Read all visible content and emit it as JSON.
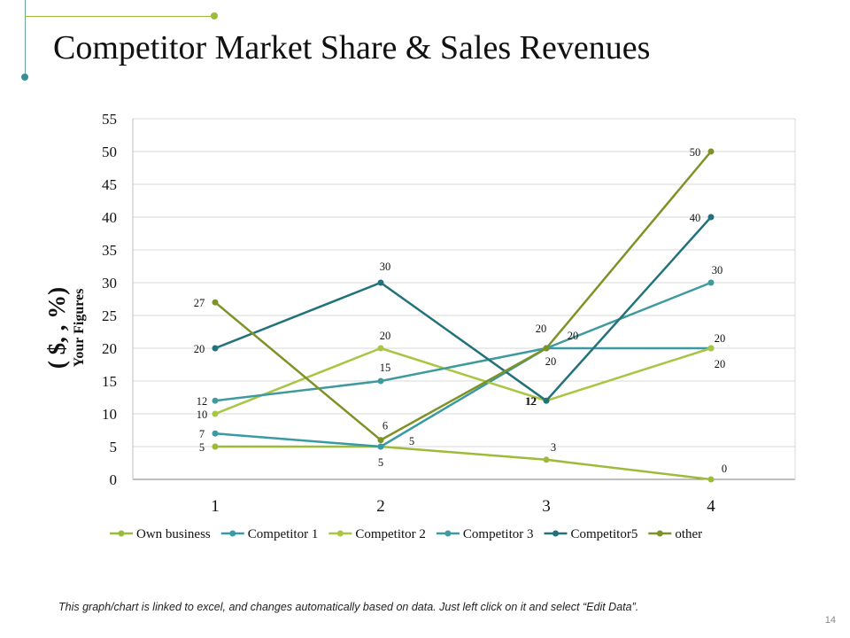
{
  "slide": {
    "title": "Competitor Market Share & Sales Revenues",
    "footer_note": "This graph/chart is linked to excel, and changes automatically based on data. Just left click on it and select “Edit Data”.",
    "page_number": "14"
  },
  "chart_data": {
    "type": "line",
    "title": "",
    "ylabel_line1": "( $, , %)",
    "ylabel_line2": "Your Figures",
    "xlabel": "",
    "categories": [
      "1",
      "2",
      "3",
      "4"
    ],
    "ylim": [
      0,
      55
    ],
    "yticks": [
      0,
      5,
      10,
      15,
      20,
      25,
      30,
      35,
      40,
      45,
      50,
      55
    ],
    "grid": true,
    "legend": "bottom",
    "series": [
      {
        "name": "Own business",
        "values": [
          5,
          5,
          3,
          0
        ],
        "color": "#9dbb3a"
      },
      {
        "name": "Competitor 1",
        "values": [
          7,
          5,
          20,
          20
        ],
        "color": "#3a9aa3"
      },
      {
        "name": "Competitor 2",
        "values": [
          10,
          20,
          12,
          20
        ],
        "color": "#a8c543"
      },
      {
        "name": "Competitor 3",
        "values": [
          12,
          15,
          20,
          30
        ],
        "color": "#3f9aa0"
      },
      {
        "name": "Competitor5",
        "values": [
          20,
          30,
          12,
          40
        ],
        "color": "#22727a"
      },
      {
        "name": "other",
        "values": [
          27,
          6,
          20,
          50
        ],
        "color": "#7e9327"
      }
    ]
  }
}
